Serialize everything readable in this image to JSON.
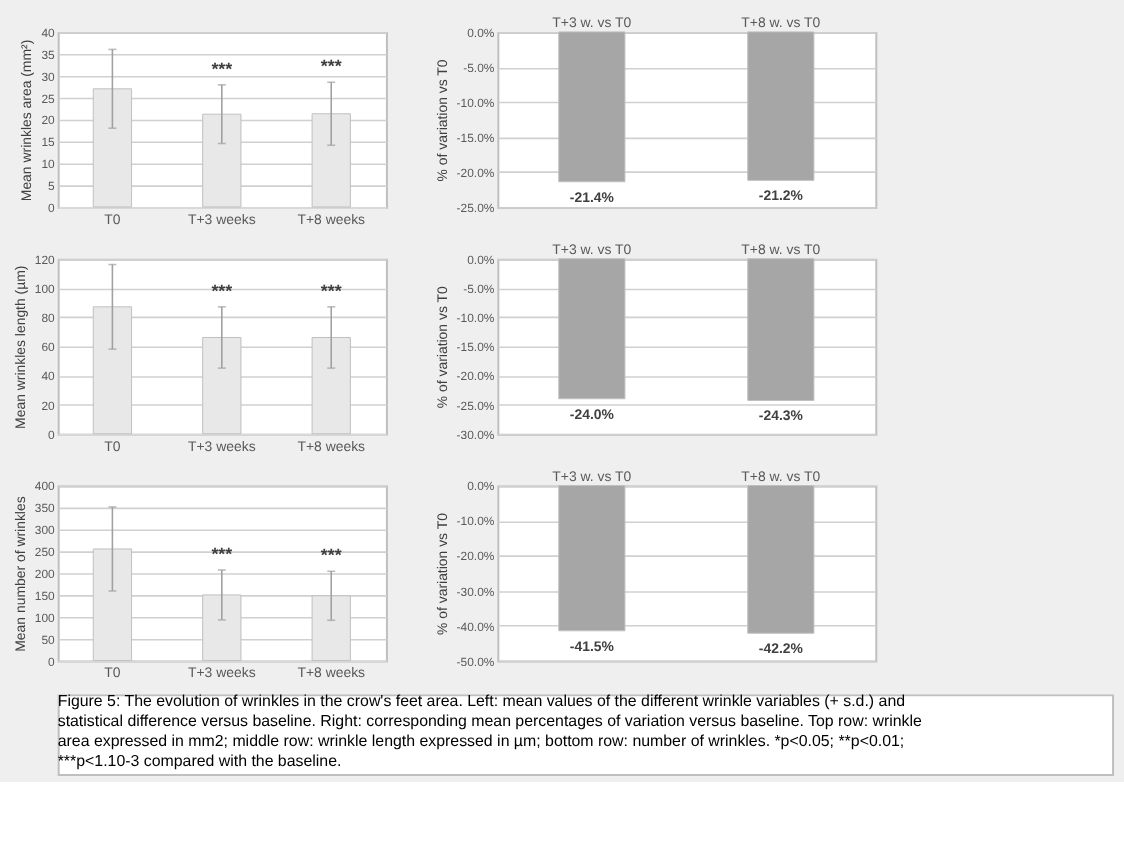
{
  "chart_data": [
    {
      "type": "bar",
      "ylabel": "Mean wrinkles area (mm²)",
      "categories": [
        "T0",
        "T+3 weeks",
        "T+8 weeks"
      ],
      "values": [
        27,
        21.2,
        21.3
      ],
      "errors": [
        9,
        6.7,
        7.2
      ],
      "color": "#e8e8e8",
      "ylim": [
        0,
        40
      ],
      "yticks": [
        0,
        5,
        10,
        15,
        20,
        25,
        30,
        35,
        40
      ],
      "grid": "y",
      "annotations": [
        "***",
        "***"
      ]
    },
    {
      "type": "bar",
      "ylabel": "% of variation vs T0",
      "categories": [
        "T+3 w. vs T0",
        "T+8 w. vs T0"
      ],
      "values": [
        -21.4,
        -21.2
      ],
      "value_labels": [
        "-21.4%",
        "-21.2%"
      ],
      "color": "#a6a6a6",
      "ylim": [
        -25,
        0
      ],
      "grid": "y",
      "yticks": [
        {
          "value": 0,
          "label": "0.0%"
        },
        {
          "value": -5,
          "label": "-5.0%"
        },
        {
          "value": -10,
          "label": "-10.0%"
        },
        {
          "value": -15,
          "label": "-15.0%"
        },
        {
          "value": -20,
          "label": "-20.0%"
        },
        {
          "value": -25,
          "label": "-25.0%"
        }
      ]
    },
    {
      "type": "bar",
      "ylabel": "Mean wrinkles length (µm)",
      "categories": [
        "T0",
        "T+3 weeks",
        "T+8 weeks"
      ],
      "values": [
        87,
        66,
        66
      ],
      "errors": [
        29,
        21,
        21
      ],
      "color": "#e8e8e8",
      "ylim": [
        0,
        120
      ],
      "yticks": [
        0,
        20,
        40,
        60,
        80,
        100,
        120
      ],
      "grid": "y",
      "annotations": [
        "***",
        "***"
      ]
    },
    {
      "type": "bar",
      "ylabel": "% of variation vs T0",
      "categories": [
        "T+3 w. vs T0",
        "T+8 w. vs T0"
      ],
      "values": [
        -24.0,
        -24.3
      ],
      "value_labels": [
        "-24.0%",
        "-24.3%"
      ],
      "color": "#a6a6a6",
      "ylim": [
        -30,
        0
      ],
      "grid": "y",
      "yticks": [
        {
          "value": 0,
          "label": "0.0%"
        },
        {
          "value": -5,
          "label": "-5.0%"
        },
        {
          "value": -10,
          "label": "-10.0%"
        },
        {
          "value": -15,
          "label": "-15.0%"
        },
        {
          "value": -20,
          "label": "-20.0%"
        },
        {
          "value": -25,
          "label": "-25.0%"
        },
        {
          "value": -30,
          "label": "-30.0%"
        }
      ]
    },
    {
      "type": "bar",
      "ylabel": "Mean number of wrinkles",
      "categories": [
        "T0",
        "T+3 weeks",
        "T+8 weeks"
      ],
      "values": [
        255,
        150,
        148
      ],
      "errors": [
        96,
        57,
        56
      ],
      "color": "#e8e8e8",
      "ylim": [
        0,
        400
      ],
      "yticks": [
        0,
        50,
        100,
        150,
        200,
        250,
        300,
        350,
        400
      ],
      "grid": "y",
      "annotations": [
        "***",
        "***"
      ]
    },
    {
      "type": "bar",
      "ylabel": "% of variation vs T0",
      "categories": [
        "T+3 w. vs T0",
        "T+8 w. vs T0"
      ],
      "values": [
        -41.5,
        -42.2
      ],
      "value_labels": [
        "-41.5%",
        "-42.2%"
      ],
      "color": "#a6a6a6",
      "ylim": [
        -50,
        0
      ],
      "grid": "y",
      "yticks": [
        {
          "value": 0,
          "label": "0.0%"
        },
        {
          "value": -10,
          "label": "-10.0%"
        },
        {
          "value": -20,
          "label": "-20.0%"
        },
        {
          "value": -30,
          "label": "-30.0%"
        },
        {
          "value": -40,
          "label": "-40.0%"
        },
        {
          "value": -50,
          "label": "-50.0%"
        }
      ],
      "annotations": [
        "Figure 5: The evolution of wrinkles in the crow's feet area. Left: mean values of the different wrinkle variables (+ s.d.) and statistical difference versus baseline. Right: corresponding mean percentages of variation versus baseline. Top row: wrinkle area expressed in mm2; middle row: wrinkle length expressed in µm; bottom row: number of wrinkles. *p<0.05; **p<0.01; ***p<1.10-3 compared with the baseline."
      ]
    }
  ]
}
